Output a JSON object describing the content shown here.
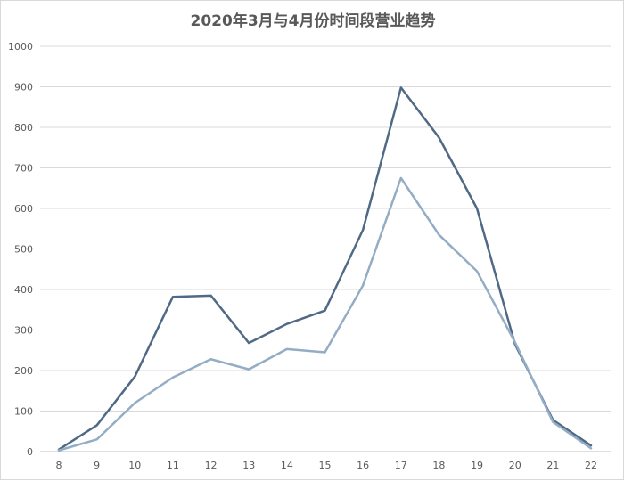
{
  "chart_data": {
    "type": "line",
    "title": "2020年3月与4月份时间段营业趋势",
    "xlabel": "",
    "ylabel": "",
    "x": [
      8,
      9,
      10,
      11,
      12,
      13,
      14,
      15,
      16,
      17,
      18,
      19,
      20,
      21,
      22
    ],
    "ylim": [
      0,
      1000
    ],
    "yticks": [
      0,
      100,
      200,
      300,
      400,
      500,
      600,
      700,
      800,
      900,
      1000
    ],
    "grid": true,
    "legend": "none",
    "series": [
      {
        "color": "#506a85",
        "values": [
          5,
          65,
          185,
          382,
          385,
          268,
          315,
          348,
          547,
          898,
          775,
          600,
          265,
          78,
          15
        ]
      },
      {
        "color": "#94adc4",
        "values": [
          3,
          30,
          120,
          183,
          228,
          203,
          253,
          245,
          410,
          675,
          535,
          445,
          270,
          73,
          8
        ]
      }
    ]
  }
}
